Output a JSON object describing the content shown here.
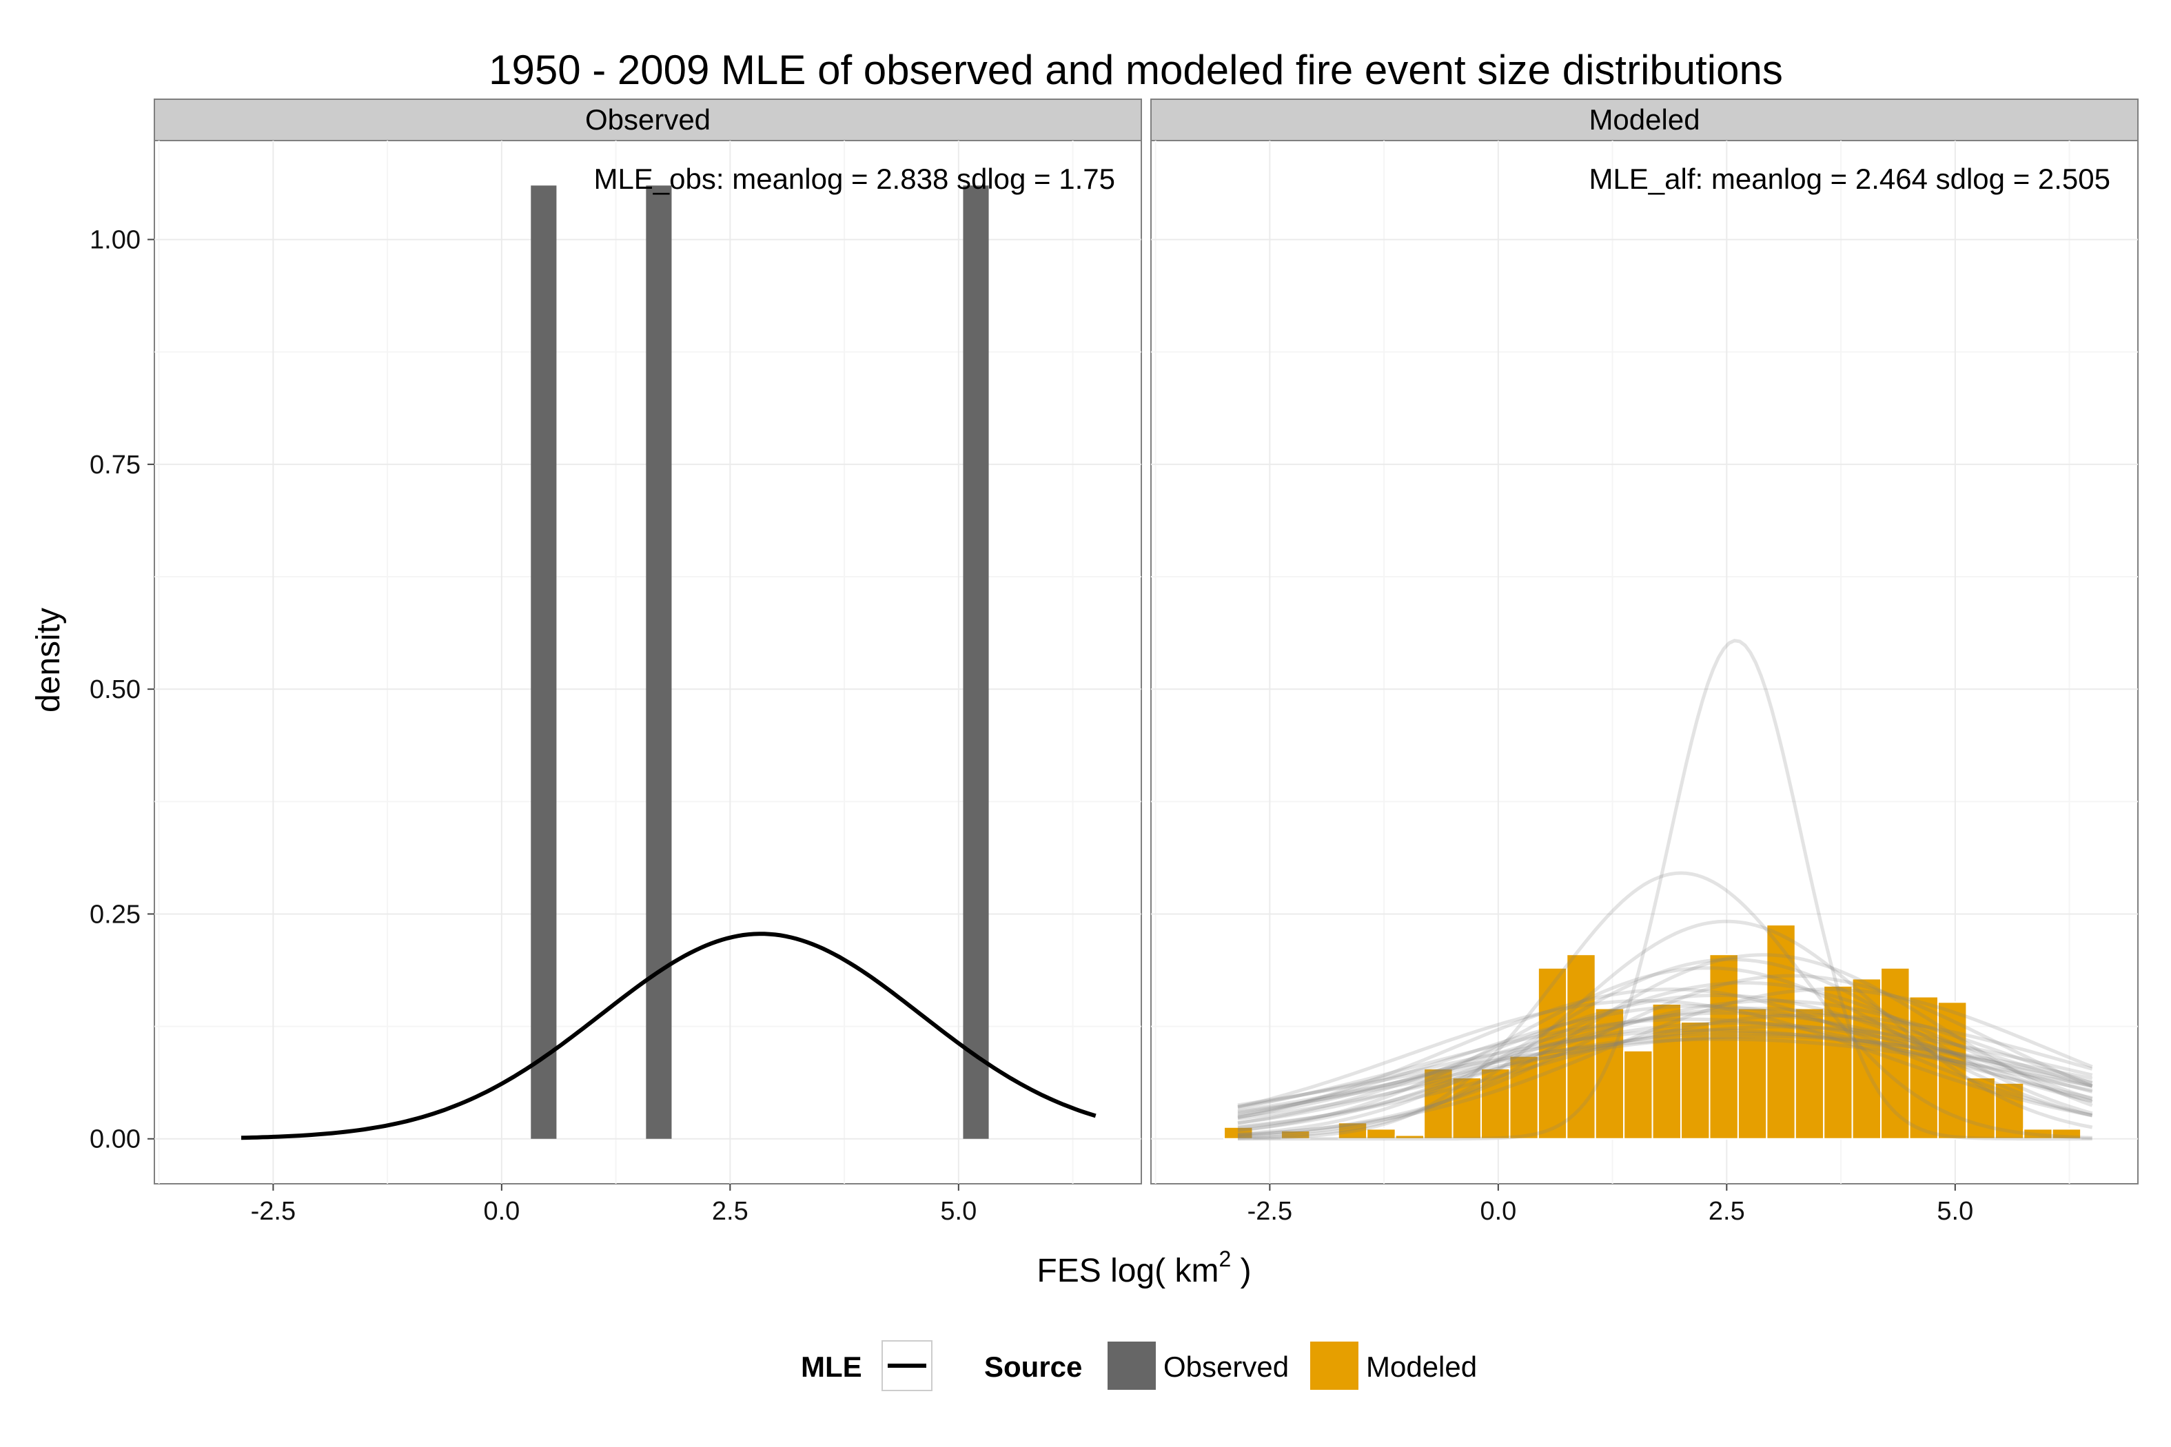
{
  "colors": {
    "observed": "#666666",
    "modeled": "#E69F00",
    "mle_line": "#000000",
    "sample_line": "#7f7f7f",
    "strip_bg": "#cccccc",
    "grid": "#ebebeb"
  },
  "chart_data": {
    "type": "bar",
    "title": "1950 - 2009 MLE of observed and modeled fire event size distributions",
    "xlabel": "FES log( km",
    "xlabel_sup": "2",
    "xlabel_end": " )",
    "ylabel": "density",
    "xlim": [
      -3.8,
      7.0
    ],
    "ylim": [
      -0.05,
      1.11
    ],
    "x_ticks": [
      -2.5,
      0.0,
      2.5,
      5.0
    ],
    "x_tick_labels": [
      "-2.5",
      "0.0",
      "2.5",
      "5.0"
    ],
    "y_ticks": [
      0.0,
      0.25,
      0.5,
      0.75,
      1.0
    ],
    "y_tick_labels": [
      "0.00",
      "0.25",
      "0.50",
      "0.75",
      "1.00"
    ],
    "grid": true,
    "legend_position": "bottom",
    "panels": [
      {
        "strip": "Observed",
        "annotation": "MLE_obs: meanlog = 2.838 sdlog = 1.75",
        "bars": [
          {
            "x": 0.46,
            "width": 0.28,
            "density": 1.06
          },
          {
            "x": 1.72,
            "width": 0.28,
            "density": 1.06
          },
          {
            "x": 5.19,
            "width": 0.28,
            "density": 1.06
          }
        ],
        "mle": {
          "meanlog": 2.838,
          "sdlog": 1.75,
          "x_range": [
            -2.85,
            6.5
          ]
        }
      },
      {
        "strip": "Modeled",
        "annotation": "MLE_alf: meanlog = 2.464 sdlog = 2.505",
        "bin_start": -3.0,
        "bin_width": 0.3125,
        "bars": [
          0.013,
          0.0,
          0.009,
          0.0,
          0.018,
          0.011,
          0.004,
          0.078,
          0.068,
          0.078,
          0.092,
          0.19,
          0.205,
          0.145,
          0.098,
          0.15,
          0.13,
          0.205,
          0.145,
          0.238,
          0.145,
          0.17,
          0.178,
          0.19,
          0.158,
          0.152,
          0.068,
          0.062,
          0.011,
          0.011
        ],
        "sample_curves": [
          {
            "meanlog": 2.6,
            "sdlog": 0.72
          },
          {
            "meanlog": 2.0,
            "sdlog": 1.35
          },
          {
            "meanlog": 2.5,
            "sdlog": 1.65
          },
          {
            "meanlog": 2.9,
            "sdlog": 1.95
          },
          {
            "meanlog": 2.3,
            "sdlog": 2.1
          },
          {
            "meanlog": 3.2,
            "sdlog": 2.2
          },
          {
            "meanlog": 2.7,
            "sdlog": 2.3
          },
          {
            "meanlog": 1.9,
            "sdlog": 2.4
          },
          {
            "meanlog": 2.4,
            "sdlog": 2.5
          },
          {
            "meanlog": 3.0,
            "sdlog": 2.6
          },
          {
            "meanlog": 2.2,
            "sdlog": 2.7
          },
          {
            "meanlog": 2.8,
            "sdlog": 2.75
          },
          {
            "meanlog": 2.5,
            "sdlog": 2.85
          },
          {
            "meanlog": 3.4,
            "sdlog": 2.9
          },
          {
            "meanlog": 2.1,
            "sdlog": 3.0
          },
          {
            "meanlog": 2.6,
            "sdlog": 3.1
          },
          {
            "meanlog": 3.1,
            "sdlog": 3.2
          },
          {
            "meanlog": 2.3,
            "sdlog": 3.3
          },
          {
            "meanlog": 2.7,
            "sdlog": 3.4
          },
          {
            "meanlog": 2.45,
            "sdlog": 3.6
          },
          {
            "meanlog": 3.6,
            "sdlog": 2.4
          },
          {
            "meanlog": 1.6,
            "sdlog": 2.6
          },
          {
            "meanlog": 2.55,
            "sdlog": 2.0
          },
          {
            "meanlog": 2.9,
            "sdlog": 3.5
          }
        ],
        "sample_x_range": [
          -2.85,
          6.5
        ]
      }
    ],
    "legend": {
      "mle_title": "MLE",
      "source_title": "Source",
      "items": [
        "Observed",
        "Modeled"
      ]
    }
  }
}
